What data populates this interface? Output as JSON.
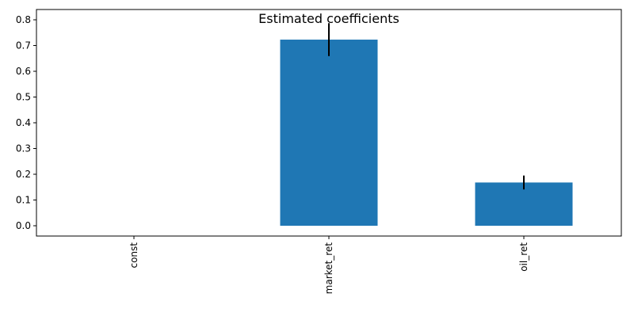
{
  "chart_data": {
    "type": "bar",
    "title": "Estimated coefficients",
    "xlabel": "",
    "ylabel": "",
    "categories": [
      "const",
      "market_ret",
      "oil_ret"
    ],
    "values": [
      0.0,
      0.723,
      0.168
    ],
    "error_low": [
      0.0,
      0.659,
      0.141
    ],
    "error_high": [
      0.0,
      0.787,
      0.195
    ],
    "ylim": [
      -0.04,
      0.84
    ],
    "yticks": [
      "0.0",
      "0.1",
      "0.2",
      "0.3",
      "0.4",
      "0.5",
      "0.6",
      "0.7",
      "0.8"
    ],
    "grid": false,
    "legend": "none",
    "bar_color": "#1f77b4",
    "error_color": "#000000"
  }
}
